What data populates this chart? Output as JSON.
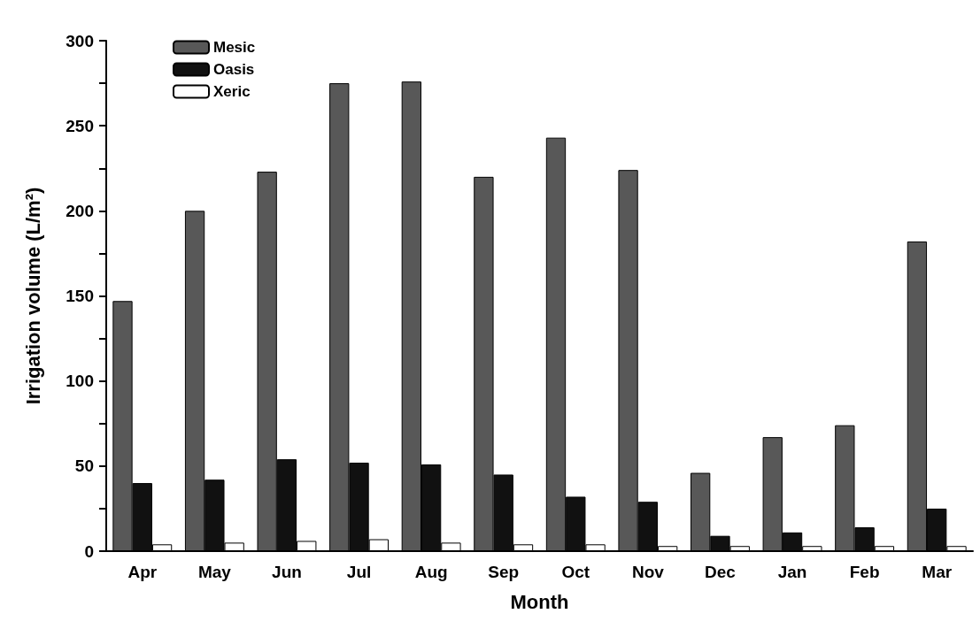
{
  "chart_data": {
    "type": "bar",
    "xlabel": "Month",
    "ylabel": "Irrigation volume (L/m²)",
    "categories": [
      "Apr",
      "May",
      "Jun",
      "Jul",
      "Aug",
      "Sep",
      "Oct",
      "Nov",
      "Dec",
      "Jan",
      "Feb",
      "Mar"
    ],
    "series": [
      {
        "name": "Mesic",
        "color": "#585858",
        "values": [
          147,
          200,
          223,
          275,
          276,
          220,
          243,
          224,
          46,
          67,
          74,
          182
        ]
      },
      {
        "name": "Oasis",
        "color": "#111111",
        "values": [
          40,
          42,
          54,
          52,
          51,
          45,
          32,
          29,
          9,
          11,
          14,
          25
        ]
      },
      {
        "name": "Xeric",
        "color": "#ffffff",
        "values": [
          4,
          5,
          6,
          7,
          5,
          4,
          4,
          3,
          3,
          3,
          3,
          3
        ]
      }
    ],
    "ylim": [
      0,
      300
    ],
    "yticks": [
      0,
      {
        "value": 25,
        "label": null
      },
      50,
      {
        "value": 75,
        "label": null
      },
      100,
      {
        "value": 125,
        "label": null
      },
      150,
      {
        "value": 175,
        "label": null
      },
      200,
      {
        "value": 225,
        "label": null
      },
      250,
      {
        "value": 275,
        "label": null
      },
      300
    ],
    "grid": false,
    "legend": "top left"
  }
}
